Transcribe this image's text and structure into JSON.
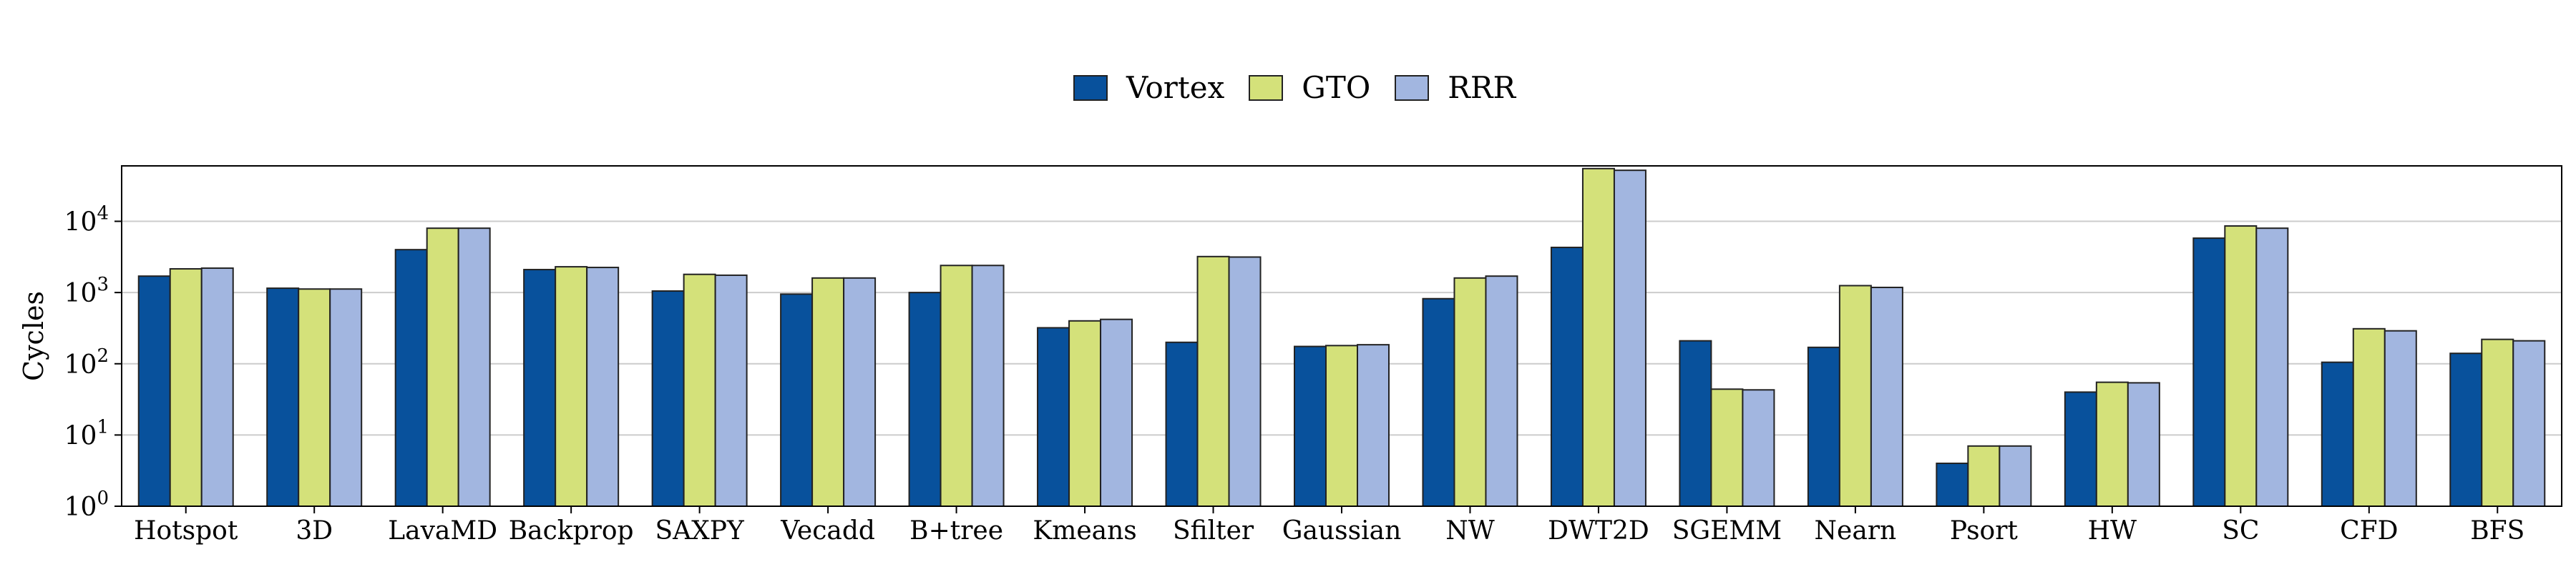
{
  "chart_data": {
    "type": "bar",
    "ylabel": "Cycles",
    "yscale": "log",
    "ylim": [
      1,
      60000
    ],
    "grid": "horizontal",
    "legend_position": "top-center",
    "categories": [
      "Hotspot",
      "3D",
      "LavaMD",
      "Backprop",
      "SAXPY",
      "Vecadd",
      "B+tree",
      "Kmeans",
      "Sfilter",
      "Gaussian",
      "NW",
      "DWT2D",
      "SGEMM",
      "Nearn",
      "Psort",
      "HW",
      "SC",
      "CFD",
      "BFS"
    ],
    "series": [
      {
        "name": "Vortex",
        "color": "#08519c",
        "values": [
          1700,
          1150,
          4000,
          2100,
          1050,
          950,
          1000,
          320,
          200,
          175,
          820,
          4300,
          210,
          170,
          4,
          40,
          5800,
          105,
          140
        ]
      },
      {
        "name": "GTO",
        "color": "#d4e17a",
        "values": [
          2150,
          1120,
          8000,
          2300,
          1800,
          1600,
          2400,
          400,
          3200,
          180,
          1600,
          55000,
          44,
          1250,
          7,
          55,
          8600,
          310,
          220
        ]
      },
      {
        "name": "RRR",
        "color": "#a2b6e0",
        "values": [
          2200,
          1120,
          8000,
          2250,
          1750,
          1600,
          2400,
          420,
          3150,
          185,
          1700,
          52000,
          43,
          1180,
          7,
          54,
          8000,
          290,
          210
        ]
      }
    ],
    "ytick_labels": [
      {
        "base": "10",
        "exp": "0"
      },
      {
        "base": "10",
        "exp": "1"
      },
      {
        "base": "10",
        "exp": "2"
      },
      {
        "base": "10",
        "exp": "3"
      },
      {
        "base": "10",
        "exp": "4"
      }
    ]
  }
}
